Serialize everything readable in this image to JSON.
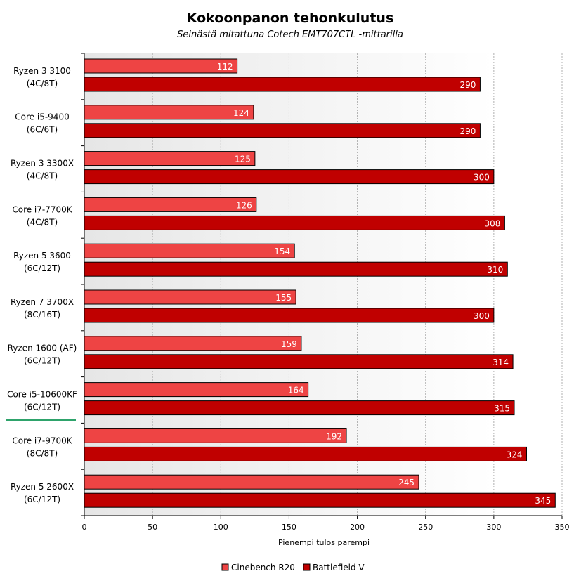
{
  "chart_data": {
    "type": "bar",
    "orientation": "horizontal",
    "title": "Kokoonpanon tehonkulutus",
    "subtitle": "Seinästä mitattuna Cotech EMT707CTL -mittarilla",
    "xlabel": "Pienempi tulos parempi",
    "xlim": [
      0,
      350
    ],
    "xticks": [
      0,
      50,
      100,
      150,
      200,
      250,
      300,
      350
    ],
    "grid": true,
    "legend_position": "bottom",
    "highlighted_category_index": 7,
    "categories": [
      [
        "Ryzen 3 3100",
        "(4C/8T)"
      ],
      [
        "Core i5-9400",
        "(6C/6T)"
      ],
      [
        "Ryzen 3 3300X",
        "(4C/8T)"
      ],
      [
        "Core i7-7700K",
        "(4C/8T)"
      ],
      [
        "Ryzen 5 3600",
        "(6C/12T)"
      ],
      [
        "Ryzen 7 3700X",
        "(8C/16T)"
      ],
      [
        "Ryzen 1600 (AF)",
        "(6C/12T)"
      ],
      [
        "Core i5-10600KF",
        "(6C/12T)"
      ],
      [
        "Core i7-9700K",
        "(8C/8T)"
      ],
      [
        "Ryzen 5 2600X",
        "(6C/12T)"
      ]
    ],
    "series": [
      {
        "name": "Cinebench R20",
        "color": "#ee4444",
        "values": [
          112,
          124,
          125,
          126,
          154,
          155,
          159,
          164,
          192,
          245
        ]
      },
      {
        "name": "Battlefield V",
        "color": "#c00000",
        "values": [
          290,
          290,
          300,
          308,
          310,
          300,
          314,
          315,
          324,
          345
        ]
      }
    ],
    "colors": {
      "highlight": "#2ea36b",
      "band_dark": "#e6e6e6",
      "band_light": "#ffffff",
      "bar_border": "#000000"
    }
  }
}
